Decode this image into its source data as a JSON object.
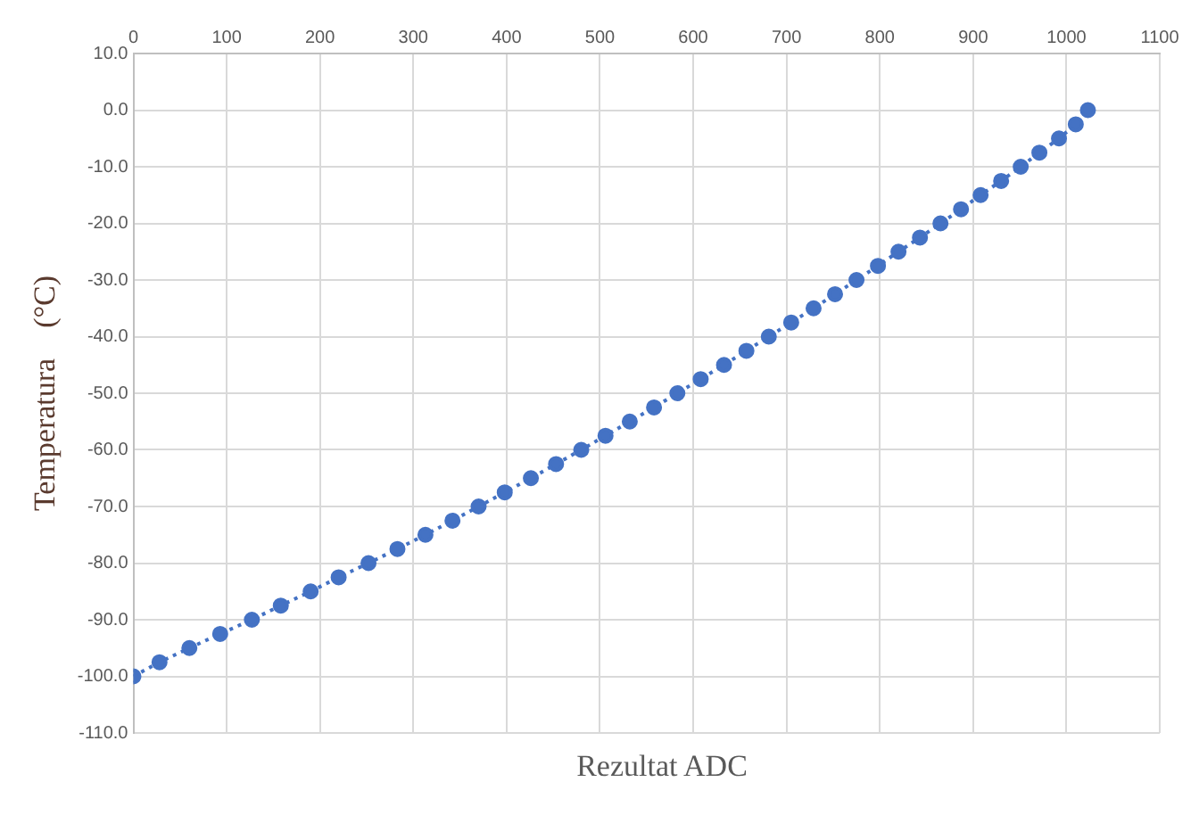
{
  "chart_data": {
    "type": "line",
    "xlabel": "Rezultat ADC",
    "ylabel": "Temperatura    (°C)",
    "series": [
      {
        "color": "#4472c4",
        "x": [
          0,
          28,
          60,
          93,
          127,
          158,
          190,
          220,
          252,
          283,
          313,
          342,
          370,
          398,
          426,
          453,
          480,
          506,
          532,
          558,
          583,
          608,
          633,
          657,
          681,
          705,
          729,
          752,
          775,
          798,
          820,
          843,
          865,
          887,
          908,
          930,
          951,
          971,
          992,
          1010,
          1023
        ],
        "values": [
          -100,
          -97.5,
          -95,
          -92.5,
          -90,
          -87.5,
          -85,
          -82.5,
          -80,
          -77.5,
          -75,
          -72.5,
          -70,
          -67.5,
          -65,
          -62.5,
          -60,
          -57.5,
          -55,
          -52.5,
          -50,
          -47.5,
          -45,
          -42.5,
          -40,
          -37.5,
          -35,
          -32.5,
          -30,
          -27.5,
          -25,
          -22.5,
          -20,
          -17.5,
          -15,
          -12.5,
          -10,
          -7.5,
          -5,
          -2.5,
          0
        ]
      }
    ],
    "xlim": [
      0,
      1100
    ],
    "xticks": [
      0,
      100,
      200,
      300,
      400,
      500,
      600,
      700,
      800,
      900,
      1000,
      1100
    ],
    "ylim": [
      -110,
      10
    ],
    "yticks": [
      {
        "value": 10,
        "label": "10.0"
      },
      {
        "value": 0,
        "label": "0.0"
      },
      {
        "value": -10,
        "label": "-10.0"
      },
      {
        "value": -20,
        "label": "-20.0"
      },
      {
        "value": -30,
        "label": "-30.0"
      },
      {
        "value": -40,
        "label": "-40.0"
      },
      {
        "value": -50,
        "label": "-50.0"
      },
      {
        "value": -60,
        "label": "-60.0"
      },
      {
        "value": -70,
        "label": "-70.0"
      },
      {
        "value": -80,
        "label": "-80.0"
      },
      {
        "value": -90,
        "label": "-90.0"
      },
      {
        "value": -100,
        "label": "-100.0"
      },
      {
        "value": -110,
        "label": "-110.0"
      }
    ],
    "grid": true,
    "legend": false,
    "marker": "circle",
    "line_style": "dotted"
  }
}
